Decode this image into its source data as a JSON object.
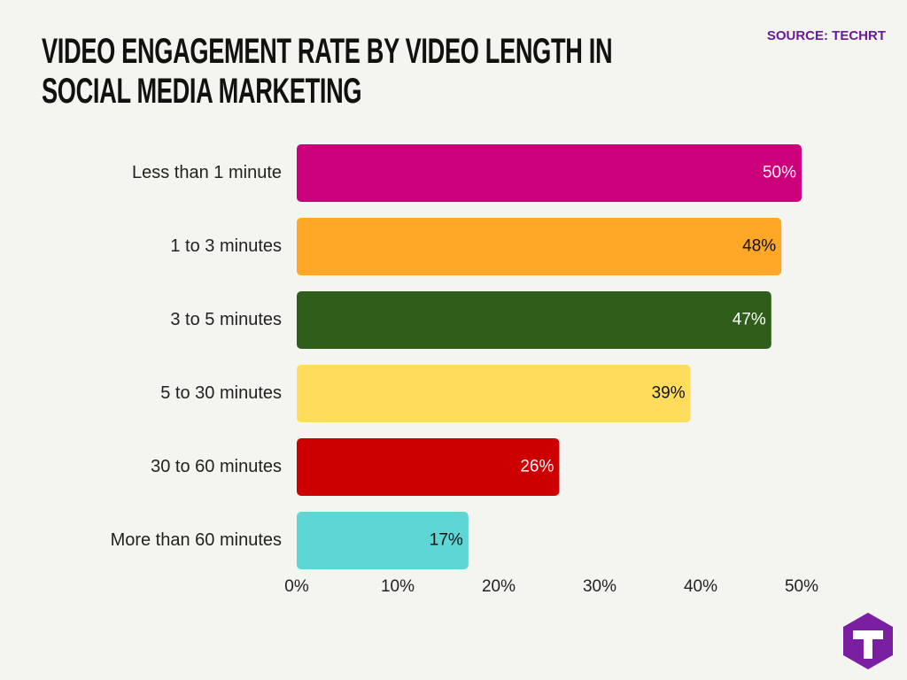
{
  "chart_data": {
    "type": "hbar",
    "title": "VIDEO ENGAGEMENT RATE BY VIDEO LENGTH IN SOCIAL MEDIA MARKETING",
    "source": "SOURCE: TECHRT",
    "categories": [
      "Less than 1 minute",
      "1 to 3 minutes",
      "3 to 5 minutes",
      "5 to 30 minutes",
      "30 to 60 minutes",
      "More than 60 minutes"
    ],
    "values": [
      50,
      48,
      47,
      39,
      26,
      17
    ],
    "value_labels": [
      "50%",
      "48%",
      "47%",
      "39%",
      "26%",
      "17%"
    ],
    "colors": [
      "#cc007a",
      "#ffa726",
      "#2e5e1a",
      "#ffdd5c",
      "#cc0000",
      "#5ed6d6"
    ],
    "value_label_colors": [
      "#ffffff",
      "#111111",
      "#ffffff",
      "#111111",
      "#ffffff",
      "#111111"
    ],
    "xlim": [
      0,
      50
    ],
    "xticks": [
      {
        "value": 0,
        "label": "0%"
      },
      {
        "value": 10,
        "label": "10%"
      },
      {
        "value": 20,
        "label": "20%"
      },
      {
        "value": 30,
        "label": "30%"
      },
      {
        "value": 40,
        "label": "40%"
      },
      {
        "value": 50,
        "label": "50%"
      }
    ],
    "grid": false
  }
}
